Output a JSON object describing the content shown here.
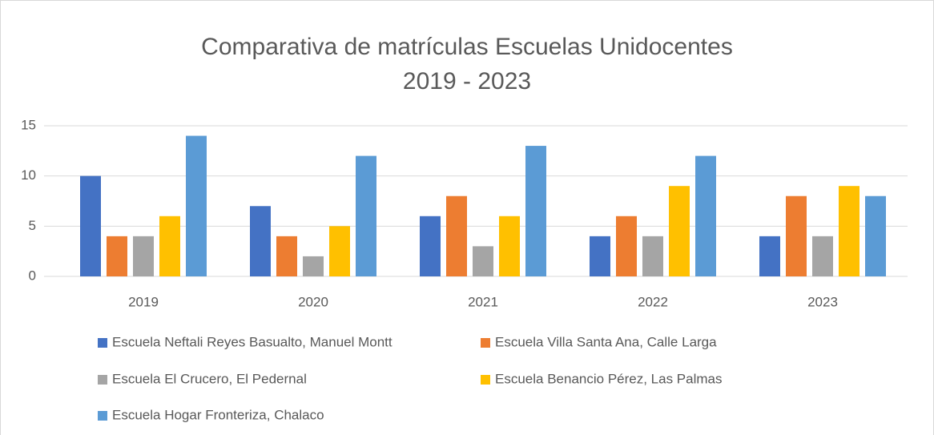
{
  "chart_data": {
    "type": "bar",
    "title": [
      "Comparativa de matrículas Escuelas Unidocentes",
      "2019 - 2023"
    ],
    "categories": [
      "2019",
      "2020",
      "2021",
      "2022",
      "2023"
    ],
    "series": [
      {
        "name": "Escuela Neftali Reyes Basualto, Manuel Montt",
        "color": "#4472c4",
        "values": [
          10,
          7,
          6,
          4,
          4
        ]
      },
      {
        "name": "Escuela Villa Santa Ana, Calle Larga",
        "color": "#ed7d31",
        "values": [
          4,
          4,
          8,
          6,
          8
        ]
      },
      {
        "name": "Escuela El Crucero, El Pedernal",
        "color": "#a5a5a5",
        "values": [
          4,
          2,
          3,
          4,
          4
        ]
      },
      {
        "name": "Escuela Benancio Pérez, Las Palmas",
        "color": "#ffc000",
        "values": [
          6,
          5,
          6,
          9,
          9
        ]
      },
      {
        "name": "Escuela Hogar Fronteriza, Chalaco",
        "color": "#5b9bd5",
        "values": [
          14,
          12,
          13,
          12,
          8
        ]
      }
    ],
    "ylim": [
      0,
      15
    ],
    "yticks": [
      0,
      5,
      10,
      15
    ],
    "grid": true,
    "legend": "bottom"
  }
}
